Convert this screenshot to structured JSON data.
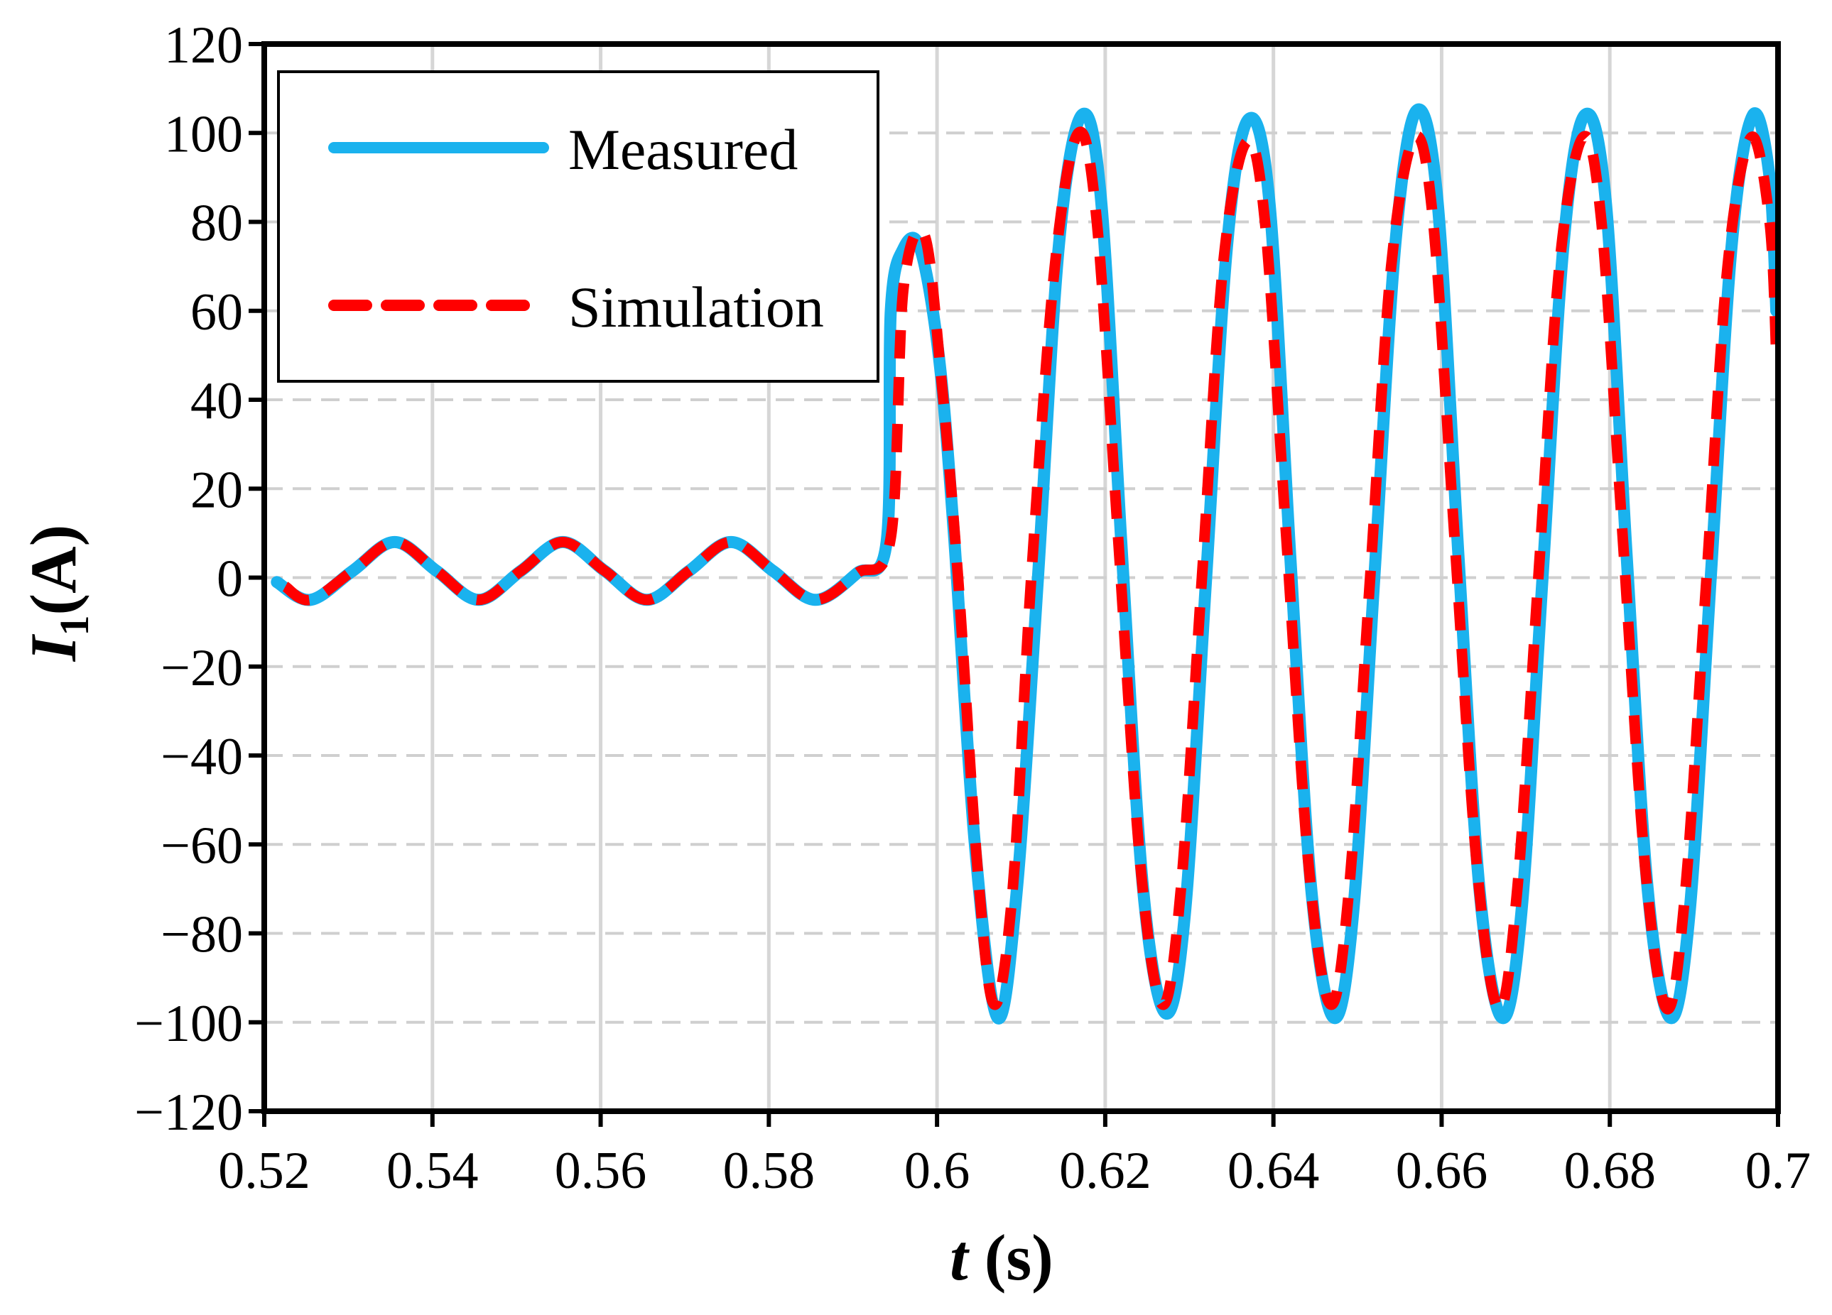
{
  "chart_data": {
    "type": "line",
    "title": "",
    "xlabel": {
      "main": "t",
      "unit": " (s)"
    },
    "ylabel": {
      "main": "I",
      "sub": "1",
      "unit": "(A)"
    },
    "xlim": [
      0.52,
      0.7
    ],
    "ylim": [
      -120,
      120
    ],
    "xticks": [
      0.52,
      0.54,
      0.56,
      0.58,
      0.6,
      0.62,
      0.64,
      0.66,
      0.68,
      0.7
    ],
    "xtick_labels": [
      "0.52",
      "0.54",
      "0.56",
      "0.58",
      "0.6",
      "0.62",
      "0.64",
      "0.66",
      "0.68",
      "0.7"
    ],
    "yticks": [
      120,
      100,
      80,
      60,
      40,
      20,
      0,
      -20,
      -40,
      -60,
      -80,
      -100,
      -120
    ],
    "ytick_labels": [
      "120",
      "100",
      "80",
      "60",
      "40",
      "20",
      "0",
      "−20",
      "−40",
      "−60",
      "−80",
      "−100",
      "−120"
    ],
    "grid": true,
    "legend_position": "top-left",
    "series": [
      {
        "name": "Measured",
        "color": "#1ab2ee",
        "style": "solid",
        "points": [
          [
            0.5215,
            -1
          ],
          [
            0.5255,
            -5
          ],
          [
            0.5305,
            1.5
          ],
          [
            0.5355,
            8
          ],
          [
            0.5405,
            1.5
          ],
          [
            0.5455,
            -5
          ],
          [
            0.5505,
            1.5
          ],
          [
            0.5555,
            8
          ],
          [
            0.5605,
            1.5
          ],
          [
            0.5655,
            -5
          ],
          [
            0.5705,
            1.5
          ],
          [
            0.5755,
            8
          ],
          [
            0.5805,
            1.5
          ],
          [
            0.5855,
            -5
          ],
          [
            0.5905,
            1
          ],
          [
            0.594,
            8
          ],
          [
            0.5945,
            60
          ],
          [
            0.596,
            74
          ],
          [
            0.598,
            74
          ],
          [
            0.6002,
            50
          ],
          [
            0.602,
            10
          ],
          [
            0.6045,
            -60
          ],
          [
            0.6072,
            -99
          ],
          [
            0.6095,
            -70
          ],
          [
            0.612,
            0
          ],
          [
            0.6145,
            75
          ],
          [
            0.6172,
            104
          ],
          [
            0.6195,
            85
          ],
          [
            0.622,
            5
          ],
          [
            0.6245,
            -70
          ],
          [
            0.6272,
            -98
          ],
          [
            0.6295,
            -75
          ],
          [
            0.632,
            0
          ],
          [
            0.6345,
            75
          ],
          [
            0.637,
            103
          ],
          [
            0.6395,
            85
          ],
          [
            0.642,
            5
          ],
          [
            0.6445,
            -70
          ],
          [
            0.6472,
            -99
          ],
          [
            0.6495,
            -75
          ],
          [
            0.652,
            0
          ],
          [
            0.6545,
            75
          ],
          [
            0.657,
            105
          ],
          [
            0.6595,
            85
          ],
          [
            0.662,
            5
          ],
          [
            0.6645,
            -70
          ],
          [
            0.6672,
            -99
          ],
          [
            0.6695,
            -75
          ],
          [
            0.672,
            0
          ],
          [
            0.6745,
            75
          ],
          [
            0.677,
            104
          ],
          [
            0.6795,
            85
          ],
          [
            0.682,
            5
          ],
          [
            0.6845,
            -70
          ],
          [
            0.6872,
            -99
          ],
          [
            0.6895,
            -75
          ],
          [
            0.692,
            0
          ],
          [
            0.6945,
            75
          ],
          [
            0.697,
            104
          ],
          [
            0.699,
            90
          ],
          [
            0.6998,
            60
          ]
        ]
      },
      {
        "name": "Simulation",
        "color": "#ff0000",
        "style": "dashed",
        "points": [
          [
            0.5225,
            -2
          ],
          [
            0.5255,
            -5
          ],
          [
            0.5305,
            1.5
          ],
          [
            0.5355,
            8
          ],
          [
            0.5405,
            1.5
          ],
          [
            0.5455,
            -5
          ],
          [
            0.5505,
            1.5
          ],
          [
            0.5555,
            8
          ],
          [
            0.5605,
            1.5
          ],
          [
            0.5655,
            -5
          ],
          [
            0.5705,
            1.5
          ],
          [
            0.5755,
            8
          ],
          [
            0.5805,
            1.5
          ],
          [
            0.5855,
            -5
          ],
          [
            0.5905,
            1
          ],
          [
            0.5945,
            9
          ],
          [
            0.596,
            65
          ],
          [
            0.5985,
            77
          ],
          [
            0.6005,
            45
          ],
          [
            0.6025,
            0
          ],
          [
            0.6048,
            -65
          ],
          [
            0.6068,
            -96
          ],
          [
            0.609,
            -70
          ],
          [
            0.6112,
            0
          ],
          [
            0.614,
            70
          ],
          [
            0.6168,
            100
          ],
          [
            0.619,
            80
          ],
          [
            0.6215,
            10
          ],
          [
            0.6242,
            -65
          ],
          [
            0.6268,
            -96
          ],
          [
            0.629,
            -70
          ],
          [
            0.6315,
            0
          ],
          [
            0.634,
            70
          ],
          [
            0.6368,
            98
          ],
          [
            0.639,
            80
          ],
          [
            0.6415,
            10
          ],
          [
            0.6442,
            -65
          ],
          [
            0.6468,
            -96
          ],
          [
            0.649,
            -70
          ],
          [
            0.6515,
            0
          ],
          [
            0.654,
            70
          ],
          [
            0.6568,
            99
          ],
          [
            0.659,
            80
          ],
          [
            0.6615,
            10
          ],
          [
            0.6642,
            -65
          ],
          [
            0.6668,
            -97
          ],
          [
            0.669,
            -70
          ],
          [
            0.6715,
            0
          ],
          [
            0.674,
            70
          ],
          [
            0.6768,
            99
          ],
          [
            0.679,
            80
          ],
          [
            0.6815,
            10
          ],
          [
            0.6842,
            -65
          ],
          [
            0.6868,
            -97
          ],
          [
            0.689,
            -70
          ],
          [
            0.6915,
            0
          ],
          [
            0.694,
            70
          ],
          [
            0.6968,
            99
          ],
          [
            0.699,
            80
          ],
          [
            0.6998,
            50
          ]
        ]
      }
    ]
  },
  "legend": {
    "items": [
      {
        "label": "Measured"
      },
      {
        "label": "Simulation"
      }
    ]
  }
}
